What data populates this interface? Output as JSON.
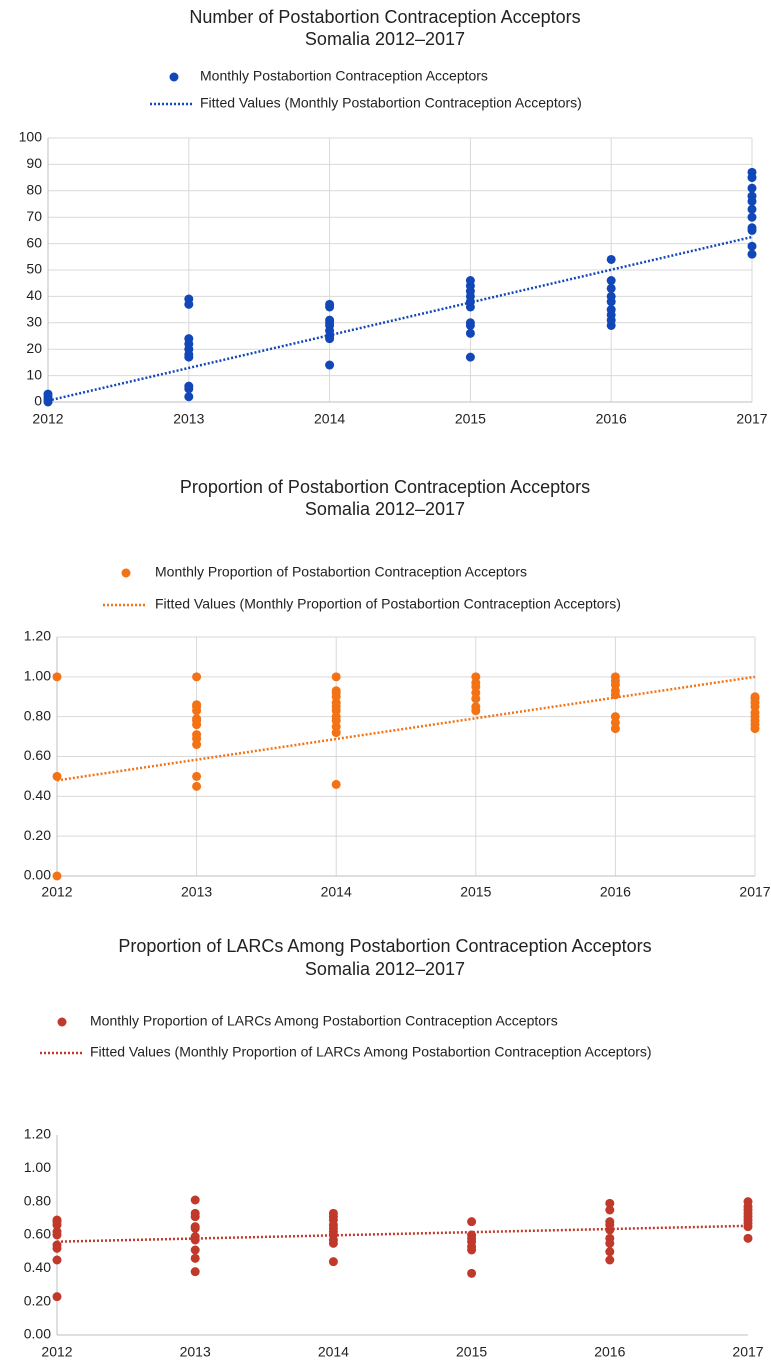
{
  "chart_data": [
    {
      "type": "scatter",
      "title": "Number of Postabortion Contraception Acceptors",
      "subtitle": "Somalia 2012–2017",
      "xlim": [
        2012,
        2017
      ],
      "xticks": [
        2012,
        2013,
        2014,
        2015,
        2016,
        2017
      ],
      "ylim": [
        0,
        100
      ],
      "yticks": [
        0,
        10,
        20,
        30,
        40,
        50,
        60,
        70,
        80,
        90,
        100
      ],
      "grid": true,
      "series": [
        {
          "name": "Monthly Postabortion Contraception Acceptors",
          "color": "#1247b8",
          "x": [
            2012,
            2012,
            2012,
            2012,
            2013,
            2013,
            2013,
            2013,
            2013,
            2013,
            2013,
            2013,
            2013,
            2013,
            2014,
            2014,
            2014,
            2014,
            2014,
            2014,
            2014,
            2014,
            2014,
            2015,
            2015,
            2015,
            2015,
            2015,
            2015,
            2015,
            2015,
            2015,
            2015,
            2016,
            2016,
            2016,
            2016,
            2016,
            2016,
            2016,
            2016,
            2016,
            2017,
            2017,
            2017,
            2017,
            2017,
            2017,
            2017,
            2017,
            2017,
            2017,
            2017
          ],
          "values": [
            0,
            1,
            2,
            3,
            2,
            5,
            6,
            17,
            18,
            20,
            22,
            24,
            37,
            39,
            14,
            24,
            25,
            27,
            29,
            30,
            31,
            36,
            37,
            17,
            26,
            29,
            30,
            36,
            38,
            40,
            42,
            44,
            46,
            29,
            31,
            33,
            35,
            38,
            40,
            43,
            46,
            54,
            56,
            59,
            65,
            66,
            70,
            73,
            76,
            78,
            81,
            85,
            87
          ]
        },
        {
          "name": "Fitted Values (Monthly Postabortion Contraception Acceptors)",
          "color": "#1247b8",
          "line_style": "dotted",
          "x": [
            2012,
            2017
          ],
          "values": [
            0.5,
            62.5
          ]
        }
      ]
    },
    {
      "type": "scatter",
      "title": "Proportion of Postabortion Contraception Acceptors",
      "subtitle": "Somalia 2012–2017",
      "xlim": [
        2012,
        2017
      ],
      "xticks": [
        2012,
        2013,
        2014,
        2015,
        2016,
        2017
      ],
      "ylim": [
        0,
        1.2
      ],
      "yticks": [
        {
          "value": 0,
          "label": "0.00"
        },
        {
          "value": 0.2,
          "label": "0.20"
        },
        {
          "value": 0.4,
          "label": "0.40"
        },
        {
          "value": 0.6,
          "label": "0.60"
        },
        {
          "value": 0.8,
          "label": "0.80"
        },
        {
          "value": 1.0,
          "label": "1.00"
        },
        {
          "value": 1.2,
          "label": "1.20"
        }
      ],
      "grid": true,
      "series": [
        {
          "name": "Monthly Proportion of Postabortion Contraception Acceptors",
          "color": "#f47216",
          "x": [
            2012,
            2012,
            2012,
            2013,
            2013,
            2013,
            2013,
            2013,
            2013,
            2013,
            2013,
            2013,
            2013,
            2013,
            2013,
            2014,
            2014,
            2014,
            2014,
            2014,
            2014,
            2014,
            2014,
            2014,
            2014,
            2014,
            2014,
            2015,
            2015,
            2015,
            2015,
            2015,
            2015,
            2015,
            2016,
            2016,
            2016,
            2016,
            2016,
            2016,
            2016,
            2016,
            2017,
            2017,
            2017,
            2017,
            2017,
            2017,
            2017,
            2017,
            2017
          ],
          "values": [
            0,
            0.5,
            1.0,
            0.45,
            0.5,
            0.66,
            0.69,
            0.71,
            0.76,
            0.78,
            0.79,
            0.83,
            0.85,
            0.86,
            1.0,
            0.46,
            0.72,
            0.75,
            0.78,
            0.8,
            0.83,
            0.85,
            0.87,
            0.9,
            0.92,
            0.93,
            1.0,
            0.83,
            0.85,
            0.89,
            0.92,
            0.95,
            0.97,
            1.0,
            0.74,
            0.77,
            0.8,
            0.91,
            0.93,
            0.96,
            0.98,
            1.0,
            0.74,
            0.76,
            0.78,
            0.8,
            0.82,
            0.85,
            0.87,
            0.89,
            0.9
          ]
        },
        {
          "name": "Fitted Values (Monthly Proportion of Postabortion Contraception Acceptors)",
          "color": "#f47216",
          "line_style": "dotted",
          "x": [
            2012,
            2017
          ],
          "values": [
            0.48,
            1.0
          ]
        }
      ]
    },
    {
      "type": "scatter",
      "title": "Proportion of LARCs Among Postabortion Contraception Acceptors",
      "subtitle": "Somalia 2012–2017",
      "xlim": [
        2012,
        2017
      ],
      "xticks": [
        2012,
        2013,
        2014,
        2015,
        2016,
        2017
      ],
      "ylim": [
        0,
        1.2
      ],
      "yticks": [
        {
          "value": 0,
          "label": "0.00"
        },
        {
          "value": 0.2,
          "label": "0.20"
        },
        {
          "value": 0.4,
          "label": "0.40"
        },
        {
          "value": 0.6,
          "label": "0.60"
        },
        {
          "value": 0.8,
          "label": "0.80"
        },
        {
          "value": 1.0,
          "label": "1.00"
        },
        {
          "value": 1.2,
          "label": "1.20"
        }
      ],
      "grid": false,
      "series": [
        {
          "name": "Monthly Proportion of LARCs Among Postabortion Contraception Acceptors",
          "color": "#c0392b",
          "x": [
            2012,
            2012,
            2012,
            2012,
            2012,
            2012,
            2012,
            2012,
            2012,
            2013,
            2013,
            2013,
            2013,
            2013,
            2013,
            2013,
            2013,
            2013,
            2013,
            2014,
            2014,
            2014,
            2014,
            2014,
            2014,
            2014,
            2014,
            2014,
            2014,
            2015,
            2015,
            2015,
            2015,
            2015,
            2015,
            2015,
            2016,
            2016,
            2016,
            2016,
            2016,
            2016,
            2016,
            2016,
            2016,
            2017,
            2017,
            2017,
            2017,
            2017,
            2017,
            2017,
            2017,
            2017
          ],
          "values": [
            0.23,
            0.45,
            0.52,
            0.54,
            0.6,
            0.62,
            0.66,
            0.68,
            0.69,
            0.38,
            0.46,
            0.51,
            0.57,
            0.59,
            0.64,
            0.65,
            0.71,
            0.73,
            0.81,
            0.44,
            0.55,
            0.57,
            0.6,
            0.62,
            0.64,
            0.66,
            0.69,
            0.71,
            0.73,
            0.37,
            0.51,
            0.53,
            0.56,
            0.58,
            0.6,
            0.68,
            0.45,
            0.5,
            0.55,
            0.58,
            0.63,
            0.66,
            0.68,
            0.75,
            0.79,
            0.58,
            0.65,
            0.67,
            0.69,
            0.71,
            0.73,
            0.75,
            0.77,
            0.8
          ]
        },
        {
          "name": "Fitted Values (Monthly Proportion of LARCs Among Postabortion Contraception Acceptors)",
          "color": "#c0392b",
          "line_style": "dotted",
          "x": [
            2012,
            2017
          ],
          "values": [
            0.56,
            0.655
          ]
        }
      ]
    }
  ]
}
